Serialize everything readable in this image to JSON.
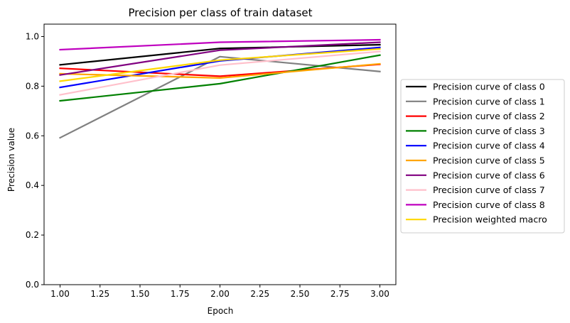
{
  "chart_data": {
    "type": "line",
    "title": "Precision per class of train dataset",
    "xlabel": "Epoch",
    "ylabel": "Precision value",
    "xlim": [
      0.9,
      3.1
    ],
    "ylim": [
      0.0,
      1.05
    ],
    "x_ticks": [
      1.0,
      1.25,
      1.5,
      1.75,
      2.0,
      2.25,
      2.5,
      2.75,
      3.0
    ],
    "x_tick_labels": [
      "1.00",
      "1.25",
      "1.50",
      "1.75",
      "2.00",
      "2.25",
      "2.50",
      "2.75",
      "3.00"
    ],
    "y_ticks": [
      0.0,
      0.2,
      0.4,
      0.6,
      0.8,
      1.0
    ],
    "y_tick_labels": [
      "0.0",
      "0.2",
      "0.4",
      "0.6",
      "0.8",
      "1.0"
    ],
    "grid": false,
    "legend_position": "outside-right",
    "x": [
      1,
      2,
      3
    ],
    "series": [
      {
        "name": "Precision curve of class 0",
        "color": "#000000",
        "values": [
          0.886,
          0.952,
          0.967
        ]
      },
      {
        "name": "Precision curve of class 1",
        "color": "#808080",
        "values": [
          0.592,
          0.919,
          0.859
        ]
      },
      {
        "name": "Precision curve of class 2",
        "color": "#ff0000",
        "values": [
          0.872,
          0.84,
          0.888
        ]
      },
      {
        "name": "Precision curve of class 3",
        "color": "#008000",
        "values": [
          0.741,
          0.81,
          0.925
        ]
      },
      {
        "name": "Precision curve of class 4",
        "color": "#0000ff",
        "values": [
          0.795,
          0.902,
          0.956
        ]
      },
      {
        "name": "Precision curve of class 5",
        "color": "#ffa500",
        "values": [
          0.85,
          0.833,
          0.89
        ]
      },
      {
        "name": "Precision curve of class 6",
        "color": "#800080",
        "values": [
          0.845,
          0.945,
          0.977
        ]
      },
      {
        "name": "Precision curve of class 7",
        "color": "#ffc0cb",
        "values": [
          0.765,
          0.885,
          0.94
        ]
      },
      {
        "name": "Precision curve of class 8",
        "color": "#bf00bf",
        "values": [
          0.947,
          0.977,
          0.987
        ]
      },
      {
        "name": "Precision weighted macro",
        "color": "#ffd700",
        "values": [
          0.82,
          0.905,
          0.95
        ]
      }
    ]
  }
}
